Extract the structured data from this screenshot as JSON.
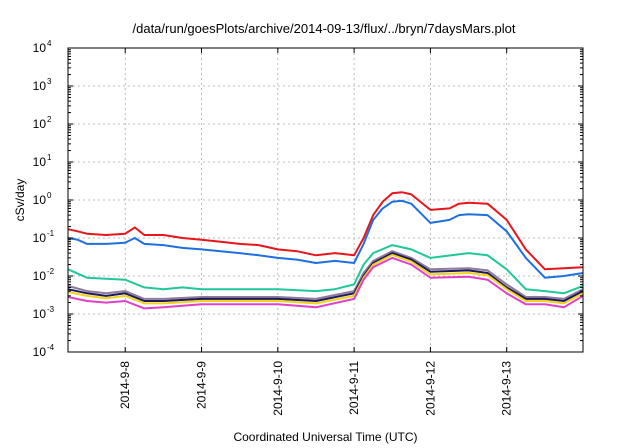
{
  "chart_data": {
    "type": "line",
    "title": "/data/run/goesPlots/archive/2014-09-13/flux/../bryn/7daysMars.plot",
    "xlabel": "Coordinated Universal Time (UTC)",
    "ylabel": "cSv/day",
    "y_scale": "log",
    "ylim": [
      0.0001,
      10000
    ],
    "y_ticks": [
      {
        "value": 0.0001,
        "base": "10",
        "exp": "-4"
      },
      {
        "value": 0.001,
        "base": "10",
        "exp": "-3"
      },
      {
        "value": 0.01,
        "base": "10",
        "exp": "-2"
      },
      {
        "value": 0.1,
        "base": "10",
        "exp": "-1"
      },
      {
        "value": 1,
        "base": "10",
        "exp": "0"
      },
      {
        "value": 10,
        "base": "10",
        "exp": "1"
      },
      {
        "value": 100,
        "base": "10",
        "exp": "2"
      },
      {
        "value": 1000,
        "base": "10",
        "exp": "3"
      },
      {
        "value": 10000,
        "base": "10",
        "exp": "4"
      }
    ],
    "xlim": [
      "2014-09-07T06:00",
      "2014-09-14T00:00"
    ],
    "x_ticks": [
      {
        "label": "2014-9-8",
        "t": "2014-09-08T00:00"
      },
      {
        "label": "2014-9-9",
        "t": "2014-09-09T00:00"
      },
      {
        "label": "2014-9-10",
        "t": "2014-09-10T00:00"
      },
      {
        "label": "2014-9-11",
        "t": "2014-09-11T00:00"
      },
      {
        "label": "2014-9-12",
        "t": "2014-09-12T00:00"
      },
      {
        "label": "2014-9-13",
        "t": "2014-09-13T00:00"
      }
    ],
    "grid": true,
    "series": [
      {
        "color": "#e8151b",
        "points": [
          [
            "2014-09-07T06:00",
            0.17
          ],
          [
            "2014-09-07T09:00",
            0.15
          ],
          [
            "2014-09-07T12:00",
            0.13
          ],
          [
            "2014-09-07T18:00",
            0.12
          ],
          [
            "2014-09-08T00:00",
            0.13
          ],
          [
            "2014-09-08T03:00",
            0.19
          ],
          [
            "2014-09-08T06:00",
            0.12
          ],
          [
            "2014-09-08T12:00",
            0.12
          ],
          [
            "2014-09-08T18:00",
            0.1
          ],
          [
            "2014-09-09T00:00",
            0.09
          ],
          [
            "2014-09-09T06:00",
            0.08
          ],
          [
            "2014-09-09T12:00",
            0.07
          ],
          [
            "2014-09-09T18:00",
            0.065
          ],
          [
            "2014-09-10T00:00",
            0.05
          ],
          [
            "2014-09-10T06:00",
            0.045
          ],
          [
            "2014-09-10T12:00",
            0.035
          ],
          [
            "2014-09-10T18:00",
            0.04
          ],
          [
            "2014-09-11T00:00",
            0.035
          ],
          [
            "2014-09-11T03:00",
            0.1
          ],
          [
            "2014-09-11T06:00",
            0.4
          ],
          [
            "2014-09-11T09:00",
            0.9
          ],
          [
            "2014-09-11T12:00",
            1.5
          ],
          [
            "2014-09-11T15:00",
            1.6
          ],
          [
            "2014-09-11T18:00",
            1.4
          ],
          [
            "2014-09-12T00:00",
            0.55
          ],
          [
            "2014-09-12T06:00",
            0.6
          ],
          [
            "2014-09-12T09:00",
            0.8
          ],
          [
            "2014-09-12T12:00",
            0.85
          ],
          [
            "2014-09-12T18:00",
            0.8
          ],
          [
            "2014-09-13T00:00",
            0.3
          ],
          [
            "2014-09-13T06:00",
            0.05
          ],
          [
            "2014-09-13T12:00",
            0.015
          ],
          [
            "2014-09-13T18:00",
            0.016
          ],
          [
            "2014-09-14T00:00",
            0.017
          ]
        ]
      },
      {
        "color": "#1e6fe0",
        "points": [
          [
            "2014-09-07T06:00",
            0.1
          ],
          [
            "2014-09-07T09:00",
            0.09
          ],
          [
            "2014-09-07T12:00",
            0.07
          ],
          [
            "2014-09-07T18:00",
            0.07
          ],
          [
            "2014-09-08T00:00",
            0.075
          ],
          [
            "2014-09-08T03:00",
            0.1
          ],
          [
            "2014-09-08T06:00",
            0.07
          ],
          [
            "2014-09-08T12:00",
            0.065
          ],
          [
            "2014-09-08T18:00",
            0.055
          ],
          [
            "2014-09-09T00:00",
            0.05
          ],
          [
            "2014-09-09T06:00",
            0.045
          ],
          [
            "2014-09-09T12:00",
            0.04
          ],
          [
            "2014-09-09T18:00",
            0.035
          ],
          [
            "2014-09-10T00:00",
            0.03
          ],
          [
            "2014-09-10T06:00",
            0.027
          ],
          [
            "2014-09-10T12:00",
            0.022
          ],
          [
            "2014-09-10T18:00",
            0.025
          ],
          [
            "2014-09-11T00:00",
            0.022
          ],
          [
            "2014-09-11T03:00",
            0.07
          ],
          [
            "2014-09-11T06:00",
            0.3
          ],
          [
            "2014-09-11T09:00",
            0.6
          ],
          [
            "2014-09-11T12:00",
            0.9
          ],
          [
            "2014-09-11T15:00",
            0.95
          ],
          [
            "2014-09-11T18:00",
            0.8
          ],
          [
            "2014-09-12T00:00",
            0.25
          ],
          [
            "2014-09-12T06:00",
            0.3
          ],
          [
            "2014-09-12T09:00",
            0.4
          ],
          [
            "2014-09-12T12:00",
            0.42
          ],
          [
            "2014-09-12T18:00",
            0.4
          ],
          [
            "2014-09-13T00:00",
            0.15
          ],
          [
            "2014-09-13T06:00",
            0.03
          ],
          [
            "2014-09-13T12:00",
            0.009
          ],
          [
            "2014-09-13T18:00",
            0.01
          ],
          [
            "2014-09-14T00:00",
            0.012
          ]
        ]
      },
      {
        "color": "#1fc79a",
        "points": [
          [
            "2014-09-07T06:00",
            0.015
          ],
          [
            "2014-09-07T12:00",
            0.009
          ],
          [
            "2014-09-07T18:00",
            0.0085
          ],
          [
            "2014-09-08T00:00",
            0.008
          ],
          [
            "2014-09-08T06:00",
            0.005
          ],
          [
            "2014-09-08T12:00",
            0.0045
          ],
          [
            "2014-09-08T18:00",
            0.005
          ],
          [
            "2014-09-09T00:00",
            0.0045
          ],
          [
            "2014-09-09T12:00",
            0.0045
          ],
          [
            "2014-09-10T00:00",
            0.0045
          ],
          [
            "2014-09-10T12:00",
            0.004
          ],
          [
            "2014-09-10T18:00",
            0.0045
          ],
          [
            "2014-09-11T00:00",
            0.006
          ],
          [
            "2014-09-11T03:00",
            0.02
          ],
          [
            "2014-09-11T06:00",
            0.04
          ],
          [
            "2014-09-11T12:00",
            0.065
          ],
          [
            "2014-09-11T18:00",
            0.05
          ],
          [
            "2014-09-12T00:00",
            0.03
          ],
          [
            "2014-09-12T12:00",
            0.04
          ],
          [
            "2014-09-12T18:00",
            0.035
          ],
          [
            "2014-09-13T00:00",
            0.015
          ],
          [
            "2014-09-13T06:00",
            0.0045
          ],
          [
            "2014-09-13T12:00",
            0.004
          ],
          [
            "2014-09-13T18:00",
            0.0035
          ],
          [
            "2014-09-14T00:00",
            0.0055
          ]
        ]
      },
      {
        "color": "#8e7a9a",
        "points": [
          [
            "2014-09-07T06:00",
            0.0055
          ],
          [
            "2014-09-07T12:00",
            0.004
          ],
          [
            "2014-09-07T18:00",
            0.0035
          ],
          [
            "2014-09-08T00:00",
            0.004
          ],
          [
            "2014-09-08T06:00",
            0.0025
          ],
          [
            "2014-09-08T12:00",
            0.0025
          ],
          [
            "2014-09-09T00:00",
            0.0028
          ],
          [
            "2014-09-09T12:00",
            0.0028
          ],
          [
            "2014-09-10T00:00",
            0.0028
          ],
          [
            "2014-09-10T12:00",
            0.0025
          ],
          [
            "2014-09-11T00:00",
            0.004
          ],
          [
            "2014-09-11T03:00",
            0.012
          ],
          [
            "2014-09-11T06:00",
            0.025
          ],
          [
            "2014-09-11T12:00",
            0.045
          ],
          [
            "2014-09-11T18:00",
            0.03
          ],
          [
            "2014-09-12T00:00",
            0.015
          ],
          [
            "2014-09-12T12:00",
            0.016
          ],
          [
            "2014-09-12T18:00",
            0.014
          ],
          [
            "2014-09-13T00:00",
            0.006
          ],
          [
            "2014-09-13T06:00",
            0.0028
          ],
          [
            "2014-09-13T12:00",
            0.0028
          ],
          [
            "2014-09-13T18:00",
            0.0025
          ],
          [
            "2014-09-14T00:00",
            0.0045
          ]
        ]
      },
      {
        "color": "#1a1a5a",
        "points": [
          [
            "2014-09-07T06:00",
            0.0045
          ],
          [
            "2014-09-07T12:00",
            0.0035
          ],
          [
            "2014-09-07T18:00",
            0.003
          ],
          [
            "2014-09-08T00:00",
            0.0035
          ],
          [
            "2014-09-08T06:00",
            0.0022
          ],
          [
            "2014-09-08T12:00",
            0.0022
          ],
          [
            "2014-09-09T00:00",
            0.0025
          ],
          [
            "2014-09-09T12:00",
            0.0025
          ],
          [
            "2014-09-10T00:00",
            0.0025
          ],
          [
            "2014-09-10T12:00",
            0.0022
          ],
          [
            "2014-09-11T00:00",
            0.0035
          ],
          [
            "2014-09-11T03:00",
            0.01
          ],
          [
            "2014-09-11T06:00",
            0.022
          ],
          [
            "2014-09-11T12:00",
            0.04
          ],
          [
            "2014-09-11T18:00",
            0.027
          ],
          [
            "2014-09-12T00:00",
            0.013
          ],
          [
            "2014-09-12T12:00",
            0.014
          ],
          [
            "2014-09-12T18:00",
            0.012
          ],
          [
            "2014-09-13T00:00",
            0.005
          ],
          [
            "2014-09-13T06:00",
            0.0025
          ],
          [
            "2014-09-13T12:00",
            0.0025
          ],
          [
            "2014-09-13T18:00",
            0.0022
          ],
          [
            "2014-09-14T00:00",
            0.004
          ]
        ]
      },
      {
        "color": "#f3d21a",
        "points": [
          [
            "2014-09-07T06:00",
            0.0038
          ],
          [
            "2014-09-07T12:00",
            0.003
          ],
          [
            "2014-09-07T18:00",
            0.0026
          ],
          [
            "2014-09-08T00:00",
            0.003
          ],
          [
            "2014-09-08T06:00",
            0.0019
          ],
          [
            "2014-09-08T12:00",
            0.0019
          ],
          [
            "2014-09-09T00:00",
            0.0022
          ],
          [
            "2014-09-09T12:00",
            0.0022
          ],
          [
            "2014-09-10T00:00",
            0.0022
          ],
          [
            "2014-09-10T12:00",
            0.0019
          ],
          [
            "2014-09-11T00:00",
            0.003
          ],
          [
            "2014-09-11T03:00",
            0.009
          ],
          [
            "2014-09-11T06:00",
            0.02
          ],
          [
            "2014-09-11T12:00",
            0.036
          ],
          [
            "2014-09-11T18:00",
            0.024
          ],
          [
            "2014-09-12T00:00",
            0.011
          ],
          [
            "2014-09-12T12:00",
            0.012
          ],
          [
            "2014-09-12T18:00",
            0.0105
          ],
          [
            "2014-09-13T00:00",
            0.0045
          ],
          [
            "2014-09-13T06:00",
            0.0022
          ],
          [
            "2014-09-13T12:00",
            0.0022
          ],
          [
            "2014-09-13T18:00",
            0.0019
          ],
          [
            "2014-09-14T00:00",
            0.0035
          ]
        ]
      },
      {
        "color": "#e040c8",
        "points": [
          [
            "2014-09-07T06:00",
            0.0028
          ],
          [
            "2014-09-07T12:00",
            0.0022
          ],
          [
            "2014-09-07T18:00",
            0.002
          ],
          [
            "2014-09-08T00:00",
            0.0022
          ],
          [
            "2014-09-08T06:00",
            0.0014
          ],
          [
            "2014-09-08T12:00",
            0.0015
          ],
          [
            "2014-09-09T00:00",
            0.0018
          ],
          [
            "2014-09-09T12:00",
            0.0018
          ],
          [
            "2014-09-10T00:00",
            0.0018
          ],
          [
            "2014-09-10T12:00",
            0.0015
          ],
          [
            "2014-09-11T00:00",
            0.0025
          ],
          [
            "2014-09-11T03:00",
            0.008
          ],
          [
            "2014-09-11T06:00",
            0.017
          ],
          [
            "2014-09-11T12:00",
            0.03
          ],
          [
            "2014-09-11T18:00",
            0.02
          ],
          [
            "2014-09-12T00:00",
            0.009
          ],
          [
            "2014-09-12T12:00",
            0.0095
          ],
          [
            "2014-09-12T18:00",
            0.008
          ],
          [
            "2014-09-13T00:00",
            0.0035
          ],
          [
            "2014-09-13T06:00",
            0.0018
          ],
          [
            "2014-09-13T12:00",
            0.0018
          ],
          [
            "2014-09-13T18:00",
            0.0015
          ],
          [
            "2014-09-14T00:00",
            0.003
          ]
        ]
      }
    ]
  }
}
